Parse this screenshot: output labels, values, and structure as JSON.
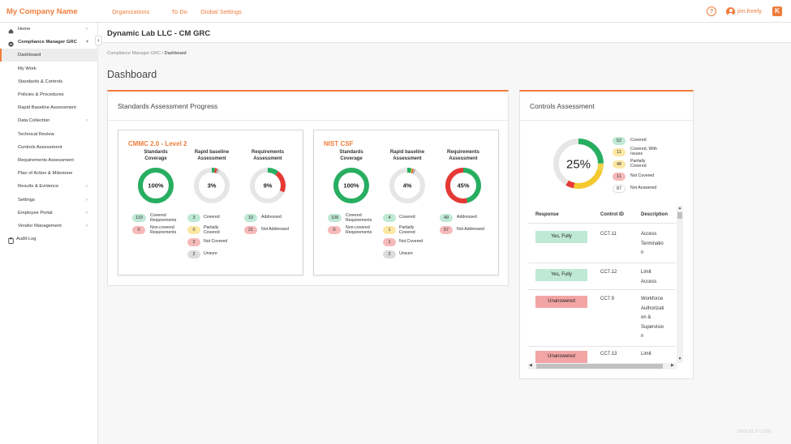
{
  "header": {
    "brand": "My Company Name",
    "nav": [
      "Organizations",
      "To Do",
      "Global Settings"
    ],
    "user": "jim.freely",
    "app_icon": "K"
  },
  "sidebar": {
    "items": [
      {
        "label": "Home",
        "icon": "home-icon",
        "chevron": true
      },
      {
        "label": "Compliance Manager GRC",
        "icon": "cm-icon",
        "chevron": true,
        "expanded": true
      },
      {
        "label": "Dashboard",
        "active": true
      },
      {
        "label": "My Work"
      },
      {
        "label": "Standards & Controls"
      },
      {
        "label": "Policies & Procedures"
      },
      {
        "label": "Rapid Baseline Assessment"
      },
      {
        "label": "Data Collection",
        "chevron": true
      },
      {
        "label": "Technical Review"
      },
      {
        "label": "Controls Assessment"
      },
      {
        "label": "Requirements Assessment"
      },
      {
        "label": "Plan of Action & Milestone"
      },
      {
        "label": "Results & Evidence",
        "chevron": true
      },
      {
        "label": "Settings",
        "chevron": true
      },
      {
        "label": "Employee Portal",
        "chevron": true
      },
      {
        "label": "Vendor Management",
        "chevron": true
      },
      {
        "label": "Audit Log",
        "icon": "clipboard-icon"
      }
    ]
  },
  "page": {
    "top_title": "Dynamic Lab LLC - CM GRC",
    "breadcrumb_parent": "Compliance Manager GRC",
    "breadcrumb_sep": " / ",
    "breadcrumb_current": "Dashboard",
    "title": "Dashboard"
  },
  "standards": {
    "title": "Standards Assessment Progress",
    "col_heads": [
      "Standards\nCoverage",
      "Rapid baseline\nAssessment",
      "Requirements\nAssessment"
    ],
    "frameworks": [
      {
        "name": "CMMC 2.0 - Level 2",
        "coverage": {
          "label": "100%",
          "covered": 110,
          "noncovered": 0
        },
        "rapid": {
          "label": "3%",
          "covered": 3,
          "partial": 0,
          "notcovered": 2,
          "unsure": 2
        },
        "req": {
          "label": "9%",
          "addressed": 10,
          "notaddressed": 21
        }
      },
      {
        "name": "NIST CSF",
        "coverage": {
          "label": "100%",
          "covered": 108,
          "noncovered": 0
        },
        "rapid": {
          "label": "4%",
          "covered": 4,
          "partial": 1,
          "notcovered": 1,
          "unsure": 2
        },
        "req": {
          "label": "45%",
          "addressed": 49,
          "notaddressed": 57
        }
      }
    ],
    "legend": {
      "covered_req": "Covered\nRequirements",
      "noncovered_req": "Non-covered\nRequirements",
      "covered": "Covered",
      "partial": "Partially\nCovered",
      "notcovered": "Not Covered",
      "unsure": "Unsure",
      "addressed": "Addressed",
      "notaddressed": "Not Addressed"
    }
  },
  "controls": {
    "title": "Controls Assessment",
    "donut_label": "25%",
    "legend": [
      {
        "value": "52",
        "label": "Covered",
        "color": "#bfe9d4"
      },
      {
        "value": "11",
        "label": "Covered, With\nIssues",
        "color": "#fce7a3"
      },
      {
        "value": "48",
        "label": "Partially\nCovered",
        "color": "#fce7a3"
      },
      {
        "value": "11",
        "label": "Not Covered",
        "color": "#f6b9b9"
      },
      {
        "value": "87",
        "label": "Not Answered",
        "color": "#ffffff"
      }
    ],
    "table": {
      "headers": [
        "Response",
        "Control ID",
        "Description"
      ],
      "rows": [
        {
          "response": "Yes, Fully",
          "status": "green",
          "id": "CC7.11",
          "desc": [
            "Access",
            "Terminatio",
            "n"
          ]
        },
        {
          "response": "Yes, Fully",
          "status": "green",
          "id": "CC7.12",
          "desc": [
            "Limit",
            "Access"
          ]
        },
        {
          "response": "Unanswered",
          "status": "red",
          "id": "CC7.9",
          "desc": [
            "Workforce",
            "Authorizati",
            "on &",
            "Supervisio",
            "n"
          ]
        },
        {
          "response": "Unanswered",
          "status": "red",
          "id": "CC7.13",
          "desc": [
            "Limit"
          ]
        }
      ]
    }
  },
  "footer": "2023.01.27-1220",
  "colors": {
    "accent": "#ef7d3b",
    "green": "#27ae60",
    "red": "#e53935",
    "yellow": "#f4c92f",
    "grey": "#e6e6e6"
  }
}
